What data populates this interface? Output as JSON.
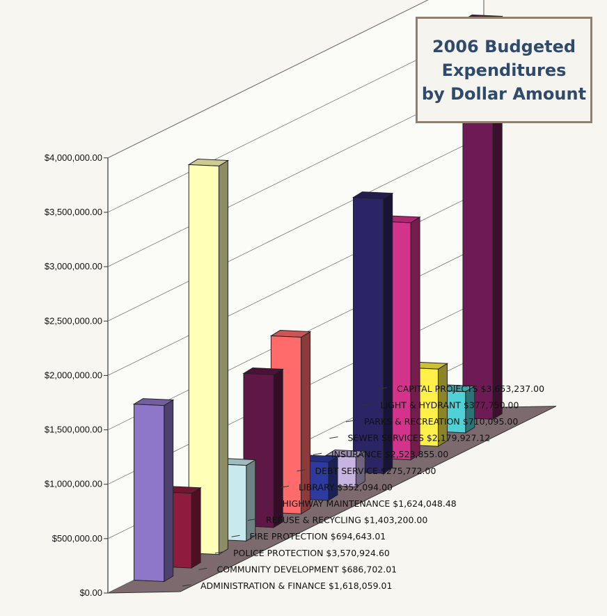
{
  "title_lines": [
    "2006 Budgeted",
    "Expenditures",
    "by Dollar Amount"
  ],
  "chart_data": {
    "type": "bar",
    "title": "2006 Budgeted Expenditures by Dollar Amount",
    "xlabel": "",
    "ylabel": "",
    "ylim": [
      0,
      4000000
    ],
    "y_ticks": [
      "$0.00",
      "$500,000.00",
      "$1,000,000.00",
      "$1,500,000.00",
      "$2,000,000.00",
      "$2,500,000.00",
      "$3,000,000.00",
      "$3,500,000.00",
      "$4,000,000.00"
    ],
    "categories": [
      "ADMINISTRATION & FINANCE",
      "COMMUNITY DEVELOPMENT",
      "POLICE PROTECTION",
      "FIRE PROTECTION",
      "REFUSE & RECYCLING",
      "HIGHWAY MAINTENANCE",
      "LIBRARY",
      "DEBT SERVICE",
      "INSURANCE",
      "SEWER SERVICES",
      "PARKS & RECREATION",
      "LIGHT & HYDRANT",
      "CAPITAL PROJECTS"
    ],
    "value_labels": [
      "$1,618,059.01",
      "$686,702.01",
      "$3,570,924.60",
      "$694,643.01",
      "$1,403,200.00",
      "$1,624,048.48",
      "$352,094.00",
      "$275,772.00",
      "$2,523,855.00",
      "$2,179,927.12",
      "$710,095.00",
      "$377,750.00",
      "$3,653,237.00"
    ],
    "values": [
      1618059.01,
      686702.01,
      3570924.6,
      694643.01,
      1403200.0,
      1624048.48,
      352094.0,
      275772.0,
      2523855.0,
      2179927.12,
      710095.0,
      377750.0,
      3653237.0
    ],
    "colors": [
      "#8e76c8",
      "#8f1b3e",
      "#ffffb8",
      "#c8eaef",
      "#5e1747",
      "#ff6a6a",
      "#2d3aa0",
      "#c8b4e2",
      "#2b2465",
      "#d4338c",
      "#fff04a",
      "#4fd1d6",
      "#6e1b55"
    ],
    "legend": "none",
    "grid": false
  }
}
